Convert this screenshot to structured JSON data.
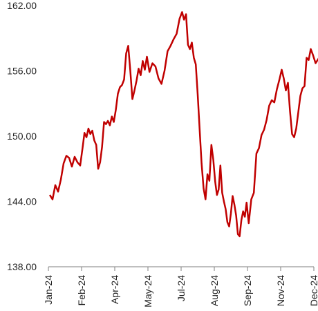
{
  "chart_data": {
    "type": "line",
    "title": "",
    "xlabel": "",
    "ylabel": "",
    "ylim": [
      138,
      162
    ],
    "y_ticks": [
      "138.00",
      "144.00",
      "150.00",
      "156.00",
      "162.00"
    ],
    "x_ticks": [
      "Jan-24",
      "Feb-24",
      "Apr-24",
      "May-24",
      "Jul-24",
      "Aug-24",
      "Sep-24",
      "Nov-24",
      "Dec-24"
    ],
    "grid": false,
    "legend": "none",
    "series": [
      {
        "color": "#c00000",
        "points": [
          [
            "Jan-24",
            144.6
          ],
          [
            "Jan-24",
            144.2
          ],
          [
            "Jan-24",
            145.5
          ],
          [
            "Jan-24",
            144.9
          ],
          [
            "Jan-24",
            146.0
          ],
          [
            "Jan-24",
            147.5
          ],
          [
            "Jan-24",
            148.2
          ],
          [
            "Jan-24",
            148.0
          ],
          [
            "Jan-24",
            147.2
          ],
          [
            "Jan-24",
            148.1
          ],
          [
            "Jan-24",
            147.6
          ],
          [
            "Jan-24",
            147.3
          ],
          [
            "Feb-24",
            148.9
          ],
          [
            "Feb-24",
            150.3
          ],
          [
            "Feb-24",
            149.9
          ],
          [
            "Feb-24",
            150.7
          ],
          [
            "Feb-24",
            150.2
          ],
          [
            "Feb-24",
            150.5
          ],
          [
            "Feb-24",
            149.6
          ],
          [
            "Feb-24",
            149.2
          ],
          [
            "Feb-24",
            147.0
          ],
          [
            "Feb-24",
            147.6
          ],
          [
            "Feb-24",
            149.0
          ],
          [
            "Feb-24",
            151.3
          ],
          [
            "Feb-24",
            151.1
          ],
          [
            "Feb-24",
            151.4
          ],
          [
            "Feb-24",
            151.0
          ],
          [
            "Feb-24",
            151.8
          ],
          [
            "Feb-24",
            151.3
          ],
          [
            "Apr-24",
            152.4
          ],
          [
            "Apr-24",
            153.9
          ],
          [
            "Apr-24",
            154.5
          ],
          [
            "Apr-24",
            154.7
          ],
          [
            "Apr-24",
            155.2
          ],
          [
            "Apr-24",
            157.6
          ],
          [
            "Apr-24",
            158.3
          ],
          [
            "Apr-24",
            156.0
          ],
          [
            "Apr-24",
            153.4
          ],
          [
            "Apr-24",
            154.2
          ],
          [
            "Apr-24",
            155.1
          ],
          [
            "Apr-24",
            156.2
          ],
          [
            "Apr-24",
            155.6
          ],
          [
            "Apr-24",
            156.9
          ],
          [
            "Apr-24",
            156.1
          ],
          [
            "Apr-24",
            157.3
          ],
          [
            "May-24",
            155.9
          ],
          [
            "May-24",
            156.7
          ],
          [
            "May-24",
            156.4
          ],
          [
            "May-24",
            155.3
          ],
          [
            "May-24",
            154.8
          ],
          [
            "May-24",
            156.0
          ],
          [
            "May-24",
            157.8
          ],
          [
            "May-24",
            158.3
          ],
          [
            "May-24",
            158.9
          ],
          [
            "May-24",
            159.4
          ],
          [
            "May-24",
            160.8
          ],
          [
            "Jul-24",
            161.4
          ],
          [
            "Jul-24",
            160.7
          ],
          [
            "Jul-24",
            161.2
          ],
          [
            "Jul-24",
            158.4
          ],
          [
            "Jul-24",
            158.0
          ],
          [
            "Jul-24",
            158.6
          ],
          [
            "Jul-24",
            157.2
          ],
          [
            "Jul-24",
            156.6
          ],
          [
            "Jul-24",
            153.8
          ],
          [
            "Jul-24",
            150.6
          ],
          [
            "Jul-24",
            147.5
          ],
          [
            "Jul-24",
            145.2
          ],
          [
            "Jul-24",
            144.2
          ],
          [
            "Jul-24",
            146.5
          ],
          [
            "Jul-24",
            145.9
          ],
          [
            "Jul-24",
            149.2
          ],
          [
            "Jul-24",
            147.8
          ],
          [
            "Aug-24",
            145.8
          ],
          [
            "Aug-24",
            144.6
          ],
          [
            "Aug-24",
            145.1
          ],
          [
            "Aug-24",
            147.3
          ],
          [
            "Aug-24",
            144.8
          ],
          [
            "Aug-24",
            144.0
          ],
          [
            "Aug-24",
            143.3
          ],
          [
            "Aug-24",
            142.1
          ],
          [
            "Aug-24",
            141.7
          ],
          [
            "Aug-24",
            142.9
          ],
          [
            "Aug-24",
            144.5
          ],
          [
            "Aug-24",
            143.7
          ],
          [
            "Aug-24",
            142.7
          ],
          [
            "Aug-24",
            141.0
          ],
          [
            "Aug-24",
            140.8
          ],
          [
            "Aug-24",
            142.3
          ],
          [
            "Aug-24",
            143.1
          ],
          [
            "Aug-24",
            142.6
          ],
          [
            "Aug-24",
            143.9
          ],
          [
            "Sep-24",
            142.0
          ],
          [
            "Sep-24",
            144.2
          ],
          [
            "Sep-24",
            144.8
          ],
          [
            "Sep-24",
            148.4
          ],
          [
            "Sep-24",
            148.9
          ],
          [
            "Sep-24",
            150.1
          ],
          [
            "Sep-24",
            150.6
          ],
          [
            "Sep-24",
            151.5
          ],
          [
            "Sep-24",
            152.8
          ],
          [
            "Sep-24",
            153.3
          ],
          [
            "Sep-24",
            153.1
          ],
          [
            "Sep-24",
            154.3
          ],
          [
            "Sep-24",
            155.2
          ],
          [
            "Nov-24",
            156.1
          ],
          [
            "Nov-24",
            155.3
          ],
          [
            "Nov-24",
            154.2
          ],
          [
            "Nov-24",
            154.9
          ],
          [
            "Nov-24",
            152.3
          ],
          [
            "Nov-24",
            150.2
          ],
          [
            "Nov-24",
            149.9
          ],
          [
            "Nov-24",
            150.7
          ],
          [
            "Nov-24",
            152.2
          ],
          [
            "Nov-24",
            153.7
          ],
          [
            "Nov-24",
            154.4
          ],
          [
            "Nov-24",
            154.6
          ],
          [
            "Nov-24",
            157.2
          ],
          [
            "Nov-24",
            157.0
          ],
          [
            "Nov-24",
            158.0
          ],
          [
            "Nov-24",
            157.5
          ],
          [
            "Dec-24",
            156.7
          ],
          [
            "Dec-24",
            157.2
          ]
        ]
      }
    ]
  }
}
